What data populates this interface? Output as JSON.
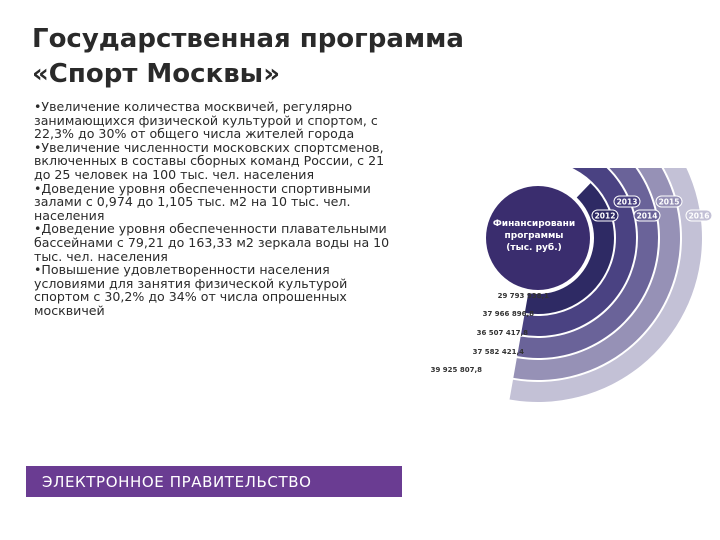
{
  "title": {
    "line1": "Государственная программа",
    "line2": "«Спорт Москвы»"
  },
  "bullets": [
    "•Увеличение количества москвичей, регулярно занимающихся физической культурой и спортом, с 22,3% до 30% от общего числа жителей города",
    "•Увеличение численности московских спортсменов, включенных в составы сборных команд России, с 21 до 25 человек на 100 тыс. чел. населения",
    "•Доведение уровня обеспеченности спортивными залами с 0,974 до 1,105 тыс. м2 на 10 тыс. чел. населения",
    "•Доведение уровня обеспеченности плавательными бассейнами с 79,21 до 163,33 м2 зеркала воды на 10 тыс. чел. населения",
    "•Повышение удовлетворенности населения условиями для занятия физической культурой спортом с 30,2% до 34% от числа опрошенных москвичей"
  ],
  "footer": {
    "label": "ЭЛЕКТРОННОЕ ПРАВИТЕЛЬСТВО"
  },
  "colors": {
    "accent": "#6a3c92",
    "title_text": "#2a2a2a",
    "chart_center": "#3a2d6e"
  },
  "chart_data": {
    "type": "radial-bar",
    "title": "Финансирование программы (тыс. руб.)",
    "title_lines": [
      "Финансировани",
      "программы",
      "(тыс. руб.)"
    ],
    "categories": [
      "2012",
      "2013",
      "2014",
      "2015",
      "2016"
    ],
    "values": [
      29793938.1,
      37966896.8,
      36507417.8,
      37582421.4,
      39925807.8
    ],
    "value_labels": [
      "29 793 938,1",
      "37 966 896,8",
      "36 507 417,8",
      "37 582 421,4",
      "39 925 807,8"
    ],
    "colors": [
      "#2e2a64",
      "#4a4282",
      "#6a6399",
      "#9691b6",
      "#c3c1d6"
    ]
  }
}
